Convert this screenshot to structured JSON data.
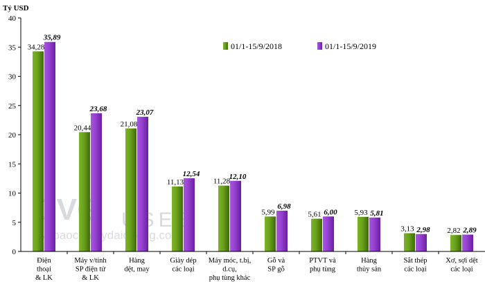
{
  "chart_data": {
    "type": "bar",
    "unit_label": "Tỷ USD",
    "ylim": [
      0,
      40
    ],
    "yticks": [
      "0",
      "5",
      "10",
      "15",
      "20",
      "25",
      "30",
      "35",
      "40"
    ],
    "grid": false,
    "legend_position": "top-right",
    "categories": [
      [
        "Điện",
        "thoại",
        "& LK"
      ],
      [
        "Máy v/tính",
        "SP điện tử",
        "& LK"
      ],
      [
        "Hàng",
        "dệt, may"
      ],
      [
        "Giày dép",
        "các loại"
      ],
      [
        "Máy móc, t.bị,",
        "d.cụ,",
        "phụ tùng khác"
      ],
      [
        "Gỗ và",
        "SP gỗ"
      ],
      [
        "PTVT và",
        "phụ tùng"
      ],
      [
        "Hàng",
        "thủy sản"
      ],
      [
        "Sắt thép",
        "các loại"
      ],
      [
        "Xơ, sợi dệt",
        "các loại"
      ]
    ],
    "series": [
      {
        "name": "01/1-15/9/2018",
        "color": "#5a8a14",
        "values": [
          34.28,
          20.44,
          21.08,
          11.13,
          11.28,
          5.99,
          5.61,
          5.93,
          3.13,
          2.82
        ],
        "labels": [
          "34,28",
          "20,44",
          "21,08",
          "11,13",
          "11,28",
          "5,99",
          "5,61",
          "5,93",
          "3,13",
          "2,82"
        ]
      },
      {
        "name": "01/1-15/9/2019",
        "color": "#8e32c8",
        "values": [
          35.89,
          23.68,
          23.07,
          12.54,
          12.1,
          6.98,
          6.0,
          5.81,
          2.98,
          2.89
        ],
        "labels": [
          "35,89",
          "23,68",
          "23,07",
          "12,54",
          "12,10",
          "6,98",
          "6,00",
          "5,81",
          "2,98",
          "2,89"
        ]
      }
    ]
  },
  "watermark": {
    "logo": "DVG",
    "word": "USES",
    "url": "thatbaocongtydaiduong.co"
  }
}
